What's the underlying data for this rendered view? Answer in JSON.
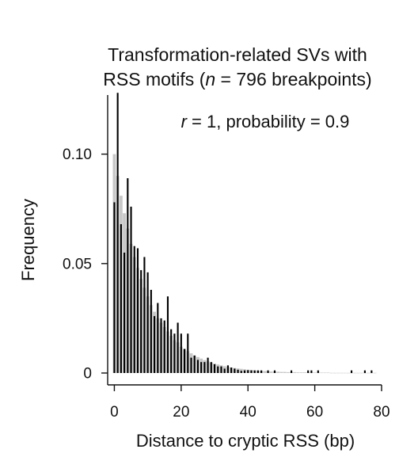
{
  "chart_data": {
    "type": "bar",
    "title_lines": [
      [
        {
          "text": "Transformation-related SVs with",
          "italic": false
        }
      ],
      [
        {
          "text": "RSS motifs (",
          "italic": false
        },
        {
          "text": "n",
          "italic": true
        },
        {
          "text": " = 796 breakpoints)",
          "italic": false
        }
      ]
    ],
    "annotation": [
      {
        "text": "r",
        "italic": true
      },
      {
        "text": " = 1, probability = 0.9",
        "italic": false
      }
    ],
    "xlabel": "Distance to cryptic RSS (bp)",
    "ylabel": "Frequency",
    "xlim": [
      -2,
      80
    ],
    "ylim": [
      0,
      0.127
    ],
    "xticks": [
      0,
      20,
      40,
      60,
      80
    ],
    "xtick_labels": [
      "0",
      "20",
      "40",
      "60",
      "80"
    ],
    "yticks": [
      0,
      0.05,
      0.1
    ],
    "ytick_labels": [
      "0",
      "0.05",
      "0.10"
    ],
    "grid": false,
    "legend": "none",
    "colors": {
      "observed": "#000000",
      "expected": "#c8c8c8",
      "axis": "#111111"
    },
    "series": [
      {
        "role": "expected",
        "x": [
          0,
          1,
          2,
          3,
          4,
          5,
          6,
          7,
          8,
          9,
          10,
          11,
          12,
          13,
          14,
          15,
          16,
          17,
          18,
          19,
          20,
          21,
          22,
          23,
          24,
          25,
          26,
          27,
          28,
          29,
          30,
          31,
          32,
          33,
          34,
          35,
          36,
          37,
          38,
          39,
          40,
          41,
          42,
          43,
          44,
          45,
          46,
          47,
          48,
          49,
          50,
          51,
          52,
          53,
          54,
          55,
          56,
          57,
          58,
          59,
          60,
          61,
          62,
          63,
          64,
          65,
          66,
          67,
          68,
          69,
          70,
          71,
          72,
          73,
          74,
          75,
          76,
          77,
          78
        ],
        "values": [
          0.1,
          0.09,
          0.081,
          0.073,
          0.066,
          0.059,
          0.053,
          0.048,
          0.043,
          0.039,
          0.035,
          0.031,
          0.028,
          0.025,
          0.023,
          0.021,
          0.019,
          0.017,
          0.015,
          0.014,
          0.012,
          0.011,
          0.01,
          0.009,
          0.008,
          0.0073,
          0.0066,
          0.0059,
          0.0053,
          0.0048,
          0.0043,
          0.0039,
          0.0035,
          0.0031,
          0.0028,
          0.0025,
          0.0023,
          0.0021,
          0.0019,
          0.0017,
          0.0015,
          0.0014,
          0.0012,
          0.0011,
          0.001,
          0.0009,
          0.0008,
          0.0007,
          0.0007,
          0.0006,
          0.0005,
          0.0005,
          0.0004,
          0.0004,
          0.0004,
          0.0003,
          0.0003,
          0.0003,
          0.0003,
          0.0002,
          0.0002,
          0.0002,
          0.0002,
          0.0002,
          0.0002,
          0.0001,
          0.0001,
          0.0001,
          0.0001,
          0.0001,
          0.0001,
          0.0001,
          0.0001,
          0.0001,
          0.0001,
          0.0001,
          0.0001,
          0.0001,
          0.0001
        ]
      },
      {
        "role": "observed",
        "x": [
          0,
          1,
          2,
          3,
          4,
          5,
          6,
          7,
          8,
          9,
          10,
          11,
          12,
          13,
          14,
          15,
          16,
          17,
          18,
          19,
          20,
          21,
          22,
          23,
          24,
          25,
          26,
          27,
          28,
          29,
          30,
          31,
          32,
          33,
          34,
          35,
          36,
          37,
          38,
          39,
          40,
          41,
          42,
          43,
          44,
          46,
          48,
          53,
          58,
          59,
          61,
          71,
          75,
          77
        ],
        "values": [
          0.078,
          0.128,
          0.068,
          0.055,
          0.089,
          0.076,
          0.058,
          0.057,
          0.047,
          0.053,
          0.046,
          0.038,
          0.026,
          0.032,
          0.025,
          0.024,
          0.035,
          0.02,
          0.018,
          0.023,
          0.018,
          0.011,
          0.018,
          0.007,
          0.008,
          0.006,
          0.005,
          0.005,
          0.007,
          0.005,
          0.004,
          0.003,
          0.003,
          0.002,
          0.0035,
          0.0025,
          0.002,
          0.0015,
          0.001,
          0.0012,
          0.0013,
          0.0012,
          0.0012,
          0.0012,
          0.0012,
          0.0012,
          0.0012,
          0.0012,
          0.0012,
          0.0012,
          0.0012,
          0.0012,
          0.0012,
          0.0012
        ]
      }
    ]
  }
}
